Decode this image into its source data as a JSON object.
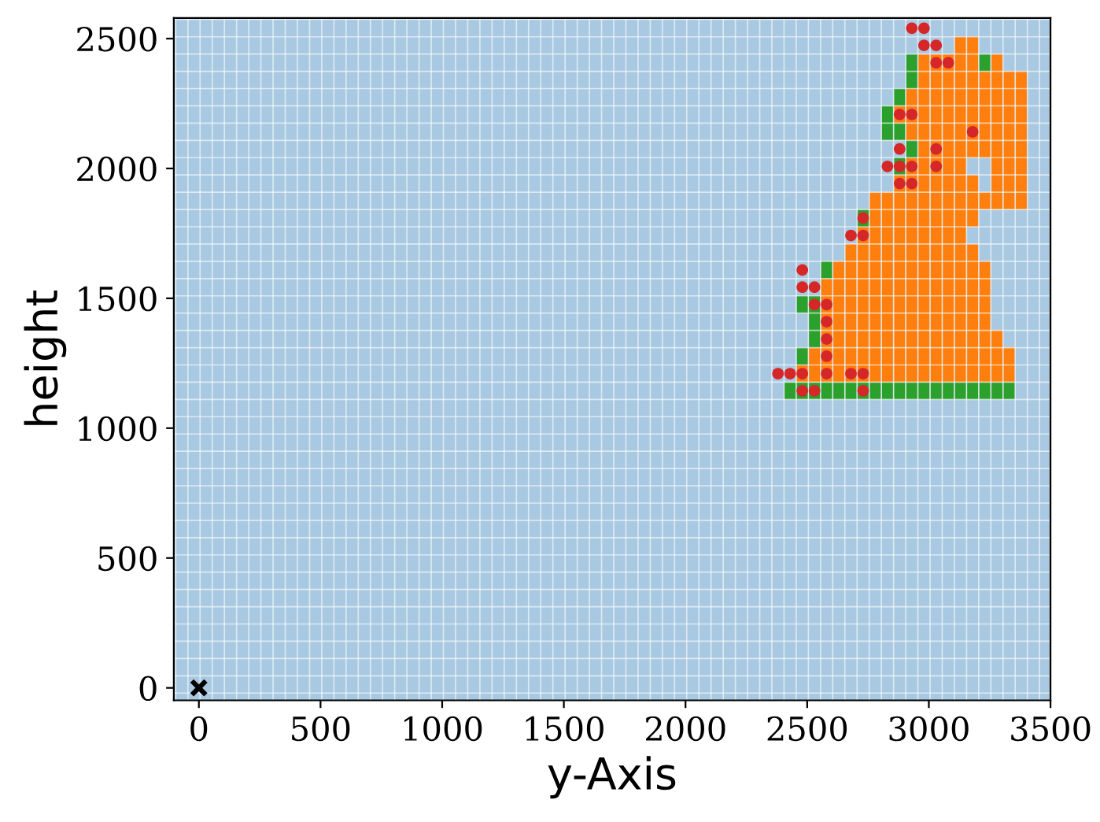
{
  "chart_data": {
    "type": "bar",
    "xlabel": "y-Axis",
    "ylabel": "height",
    "xlim": [
      -103,
      3500
    ],
    "ylim": [
      -48,
      2579
    ],
    "xticks": [
      0,
      500,
      1000,
      1500,
      2000,
      2500,
      3000,
      3500
    ],
    "yticks": [
      0,
      500,
      1000,
      1500,
      2000,
      2500
    ],
    "grid": true,
    "bands": [
      {
        "axis": "y",
        "from": -48,
        "to": 2579,
        "color": "#a8c9e1"
      }
    ],
    "series": [
      {
        "color": "#ff7f0e",
        "x": [
          2480,
          2530,
          2580,
          2630,
          2680,
          2730,
          2780,
          2830,
          2880,
          2930,
          2980,
          3030,
          3080,
          3130,
          3180,
          3230,
          3280,
          3330,
          3380
        ],
        "base": [
          1177,
          1177,
          1177,
          1177,
          1177,
          1177,
          1177,
          1177,
          1177,
          1177,
          1177,
          1177,
          1177,
          1177,
          1177,
          1177,
          1177,
          1177,
          1842
        ],
        "values": [
          66.5,
          133,
          399,
          465.5,
          532,
          598.5,
          731.5,
          731.5,
          798,
          864.5,
          1263.5,
          1263.5,
          1263.5,
          1330,
          532,
          465.5,
          199.5,
          133,
          532
        ]
      },
      {
        "color": "#ff7f0e",
        "x": [
          2880,
          2930,
          3180,
          3230,
          3280,
          3330
        ],
        "base": [
          2174.5,
          2108,
          1775.5,
          1842,
          1842,
          1842
        ],
        "values": [
          66.5,
          199.5,
          199.5,
          66.5,
          598.5,
          532
        ]
      },
      {
        "color": "#ff7f0e",
        "x": [
          3180,
          3230
        ],
        "base": [
          2041.5,
          2041.5
        ],
        "values": [
          465.5,
          332.5
        ]
      },
      {
        "color": "#2ca02c",
        "x": [
          2430,
          2480,
          2530,
          2580,
          2630,
          2680,
          2730,
          2780,
          2830,
          2880,
          2930,
          2980,
          3030,
          3080,
          3130,
          3180,
          3230,
          3280,
          3330
        ],
        "base": [
          1110.5,
          1110.5,
          1110.5,
          1110.5,
          1110.5,
          1110.5,
          1110.5,
          1110.5,
          1110.5,
          1110.5,
          1110.5,
          1110.5,
          1110.5,
          1110.5,
          1110.5,
          1110.5,
          1110.5,
          1110.5,
          1110.5
        ],
        "values": [
          66.5,
          66.5,
          66.5,
          66.5,
          66.5,
          66.5,
          66.5,
          66.5,
          66.5,
          66.5,
          66.5,
          66.5,
          66.5,
          66.5,
          66.5,
          66.5,
          66.5,
          66.5,
          66.5
        ]
      },
      {
        "color": "#2ca02c",
        "x": [
          2480,
          2530,
          2580,
          2730,
          2830,
          2880,
          2930,
          3230
        ],
        "base": [
          1243.5,
          1310,
          1576,
          1775.5,
          2108,
          1975,
          2041.5,
          2374
        ],
        "values": [
          66.5,
          199.5,
          66.5,
          66.5,
          133,
          66.5,
          66.5,
          66.5
        ]
      },
      {
        "color": "#2ca02c",
        "x": [
          2480,
          2880,
          2930
        ],
        "base": [
          1443,
          2108,
          2307.5
        ],
        "values": [
          66.5,
          66.5,
          133
        ]
      },
      {
        "color": "#2ca02c",
        "x": [
          2880
        ],
        "base": [
          2241
        ],
        "values": [
          66.5
        ]
      },
      {
        "type": "scatter",
        "color": "#d62728",
        "marker": "circle",
        "x": [
          2930,
          2980,
          2980,
          3030,
          3030,
          3080,
          2880,
          2930,
          3180,
          2880,
          3030,
          2830,
          2880,
          2930,
          3030,
          2880,
          2930,
          2730,
          2680,
          2730,
          2480,
          2480,
          2530,
          2530,
          2580,
          2580,
          2580,
          2580,
          2380,
          2430,
          2480,
          2580,
          2680,
          2730,
          2480,
          2530,
          2730
        ],
        "values": [
          2540,
          2540,
          2474,
          2474,
          2407,
          2407,
          2208,
          2208,
          2141,
          2075,
          2075,
          2008,
          2008,
          2008,
          2008,
          1942,
          1942,
          1809,
          1742,
          1742,
          1609,
          1543,
          1543,
          1476,
          1476,
          1410,
          1343,
          1277,
          1210,
          1210,
          1210,
          1210,
          1210,
          1210,
          1144,
          1144,
          1144
        ]
      },
      {
        "type": "scatter",
        "color": "#000000",
        "marker": "cross",
        "x": [
          0
        ],
        "values": [
          0
        ]
      }
    ]
  }
}
